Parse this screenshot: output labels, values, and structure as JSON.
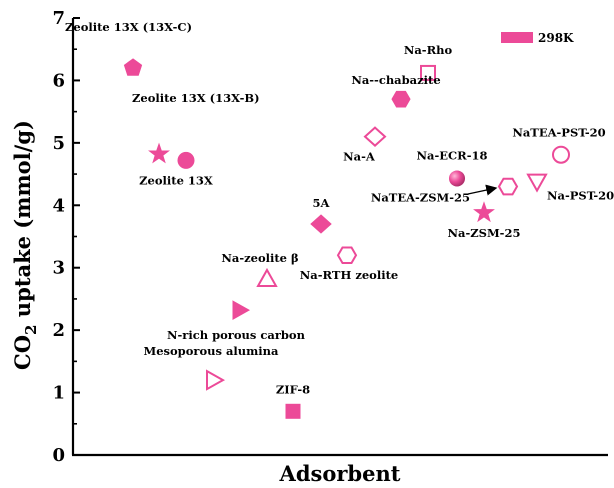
{
  "chart_data": {
    "type": "scatter",
    "title": "",
    "xlabel": "Adsorbent",
    "ylabel_main": "CO",
    "ylabel_sub": "2",
    "ylabel_rest": " uptake (mmol/g)",
    "ylim": [
      0,
      7
    ],
    "yticks": [
      "0",
      "1",
      "2",
      "3",
      "4",
      "5",
      "6",
      "7"
    ],
    "grid": false,
    "legend": {
      "label": "298K",
      "placement": "top-right"
    },
    "colors": {
      "marker": "#ec4a98",
      "axis": "#000000"
    },
    "points": [
      {
        "label": "Zeolite 13X (13X-C)",
        "y": 6.2,
        "marker": "pentagon",
        "filled": true
      },
      {
        "label": "Zeolite 13X (13X-B)",
        "y": 4.82,
        "marker": "star",
        "filled": true
      },
      {
        "label": "Zeolite 13X",
        "y": 4.72,
        "marker": "circle",
        "filled": true
      },
      {
        "label": "Na-Rho",
        "y": 6.12,
        "marker": "square",
        "filled": false
      },
      {
        "label": "Na--chabazite",
        "y": 5.7,
        "marker": "hexagon",
        "filled": true
      },
      {
        "label": "Na-A",
        "y": 5.1,
        "marker": "diamond",
        "filled": false
      },
      {
        "label": "Na-ECR-18",
        "y": 4.43,
        "marker": "sphere",
        "filled": true
      },
      {
        "label": "NaTEA-ZSM-25",
        "y": 4.3,
        "marker": "hexagon",
        "filled": false
      },
      {
        "label": "Na-ZSM-25",
        "y": 3.88,
        "marker": "star",
        "filled": true
      },
      {
        "label": "Na-PST-20",
        "y": 4.38,
        "marker": "triangle-down",
        "filled": false
      },
      {
        "label": "NaTEA-PST-20",
        "y": 4.81,
        "marker": "circle",
        "filled": false
      },
      {
        "label": "5A",
        "y": 3.7,
        "marker": "diamond",
        "filled": true
      },
      {
        "label": "Na-RTH zeolite",
        "y": 3.2,
        "marker": "hexagon",
        "filled": false
      },
      {
        "label": "Na-zeolite β",
        "y": 2.82,
        "marker": "triangle-up",
        "filled": false
      },
      {
        "label": "N-rich porous carbon",
        "y": 2.32,
        "marker": "triangle-right",
        "filled": true
      },
      {
        "label": "Mesoporous alumina",
        "y": 1.2,
        "marker": "triangle-right",
        "filled": false
      },
      {
        "label": "ZIF-8",
        "y": 0.7,
        "marker": "square",
        "filled": true
      }
    ]
  }
}
